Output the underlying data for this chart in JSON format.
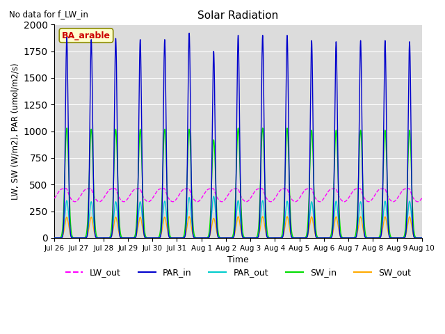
{
  "title": "Solar Radiation",
  "annotation": "No data for f_LW_in",
  "legend_box_label": "BA_arable",
  "ylabel": "LW, SW (W/m2), PAR (umol/m2/s)",
  "xlabel": "Time",
  "ylim": [
    0,
    2000
  ],
  "n_days": 16,
  "lines": {
    "LW_out": {
      "color": "#ff00ff",
      "lw": 1.0,
      "ls": "--"
    },
    "PAR_in": {
      "color": "#0000cc",
      "lw": 1.0,
      "ls": "-"
    },
    "PAR_out": {
      "color": "#00cccc",
      "lw": 1.0,
      "ls": "-"
    },
    "SW_in": {
      "color": "#00dd00",
      "lw": 1.0,
      "ls": "-"
    },
    "SW_out": {
      "color": "#ffaa00",
      "lw": 1.0,
      "ls": "-"
    }
  },
  "LW_out_base": 400,
  "PAR_in_peaks": [
    1880,
    1860,
    1870,
    1860,
    1860,
    1920,
    1750,
    1900,
    1900,
    1900,
    1850,
    1840,
    1850,
    1850,
    1840,
    1860
  ],
  "PAR_out_peaks": [
    350,
    340,
    340,
    340,
    345,
    380,
    390,
    350,
    350,
    345,
    340,
    345,
    340,
    345,
    345,
    345
  ],
  "SW_in_peaks": [
    1030,
    1020,
    1020,
    1020,
    1020,
    1020,
    920,
    1030,
    1030,
    1030,
    1010,
    1010,
    1010,
    1010,
    1010,
    1020
  ],
  "SW_out_peaks": [
    195,
    195,
    195,
    195,
    195,
    200,
    185,
    200,
    200,
    200,
    198,
    198,
    198,
    198,
    198,
    198
  ],
  "special_day": 6,
  "special_cutoff": 1250,
  "special_resume": 1600,
  "figsize": [
    6.4,
    4.8
  ],
  "dpi": 100
}
